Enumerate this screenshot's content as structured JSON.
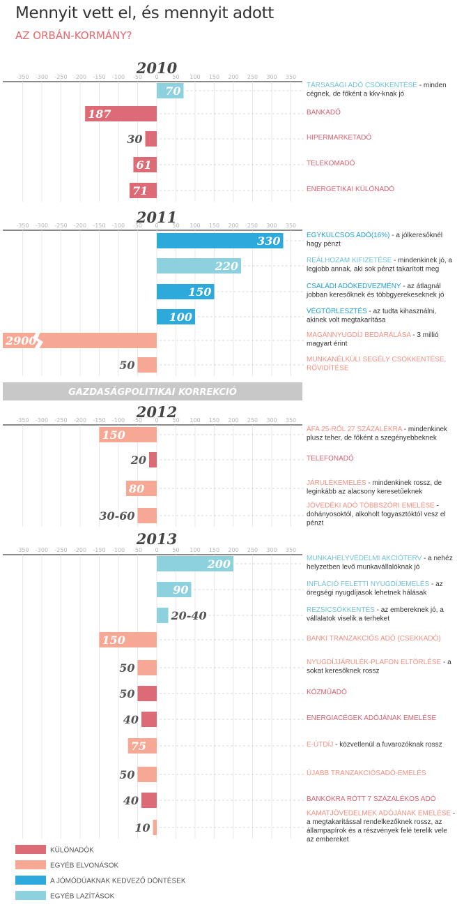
{
  "header": {
    "title": "Mennyit vett el, és mennyit adott",
    "subtitle": "AZ ORBÁN-KORMÁNY?"
  },
  "colors": {
    "kulonado": "#dc6b76",
    "egyeb_elvonas": "#f7a895",
    "jomodu": "#2ea9dc",
    "egyeb_lazitas": "#8dd0de",
    "kulonado_text": "#d96070",
    "egyeb_elvonas_text": "#f28f80",
    "jomodu_text": "#1f9ed6",
    "egyeb_lazitas_text": "#6ec3d6",
    "value_text": "#555555",
    "band": "#c8c8c8"
  },
  "chart_data": {
    "type": "bar",
    "orientation": "horizontal",
    "xlim": [
      -350,
      350
    ],
    "x_ticks": [
      -350,
      -300,
      -250,
      -200,
      -150,
      -100,
      -50,
      0,
      50,
      100,
      150,
      200,
      250,
      300,
      350
    ],
    "x_tick_labels": [
      "-350",
      "-300",
      "-250",
      "-200",
      "-150",
      "-100",
      "-50",
      "0",
      "50",
      "100",
      "150",
      "200",
      "250",
      "300",
      "350"
    ],
    "grid": true,
    "sections": [
      {
        "year": "2010",
        "items": [
          {
            "category": "egyeb_lazitas",
            "value": 70,
            "value_label": "70",
            "label": "TÁRSASÁGI ADÓ CSÖKKENTÉSE",
            "desc": " - minden cégnek, de főként a kkv-knak jó"
          },
          {
            "category": "kulonado",
            "value": -187,
            "value_label": "187",
            "label": "BANKADÓ",
            "desc": ""
          },
          {
            "category": "kulonado",
            "value": -30,
            "value_label": "30",
            "label": "HIPERMARKETADÓ",
            "desc": ""
          },
          {
            "category": "kulonado",
            "value": -61,
            "value_label": "61",
            "label": "TELEKOMADÓ",
            "desc": ""
          },
          {
            "category": "kulonado",
            "value": -71,
            "value_label": "71",
            "label": "ENERGETIKAI KÜLÖNADÓ",
            "desc": ""
          }
        ]
      },
      {
        "year": "2011",
        "items": [
          {
            "category": "jomodu",
            "value": 330,
            "value_label": "330",
            "label": "EGYKULCSOS ADÓ(16%)",
            "desc": " - a jólkeresőknél hagy pénzt"
          },
          {
            "category": "egyeb_lazitas",
            "value": 220,
            "value_label": "220",
            "label": "REÁLHOZAM KIFIZETÉSE",
            "desc": " - mindenkinek jó, a legjobb annak, aki sok pénzt takarított meg"
          },
          {
            "category": "jomodu",
            "value": 150,
            "value_label": "150",
            "label": "CSALÁDI ADÓKEDVEZMÉNY",
            "desc": " - az átlagnál jobban keresőknek és többgyerekeseknek jó"
          },
          {
            "category": "jomodu",
            "value": 100,
            "value_label": "100",
            "label": "VÉGTÖRLESZTÉS",
            "desc": " - az tudta kihasználni, akinek volt megtakarítása"
          },
          {
            "category": "egyeb_elvonas",
            "value": -2900,
            "value_label": "2900",
            "label": "MAGÁNNYUGDÍJ BEDARÁLÁSA",
            "desc": " - 3 millió magyart érint",
            "broken": true
          },
          {
            "category": "egyeb_elvonas",
            "value": -50,
            "value_label": "50",
            "label": "MUNKANÉLKÜLI SEGÉLY CSÖKKENTÉSE, RÖVIDÍTÉSE",
            "desc": ""
          }
        ]
      },
      {
        "band": "GAZDASÁGPOLITIKAI KORREKCIÓ"
      },
      {
        "year": "2012",
        "items": [
          {
            "category": "egyeb_elvonas",
            "value": -150,
            "value_label": "150",
            "label": "ÁFA 25-RŐL 27 SZÁZALÉKRA",
            "desc": " - mindenkinek plusz teher, de főként a szegényebbeknek"
          },
          {
            "category": "kulonado",
            "value": -20,
            "value_label": "20",
            "label": "TELEFONADÓ",
            "desc": ""
          },
          {
            "category": "egyeb_elvonas",
            "value": -80,
            "value_label": "80",
            "label": "JÁRULÉKEMELÉS",
            "desc": " - mindenkinek rossz, de leginkább az alacsony keresetűeknek"
          },
          {
            "category": "egyeb_elvonas",
            "value": -50,
            "value_label": "30-60",
            "label": "JÖVEDÉKI ADÓ TÖBBSZÖRI EMELÉSE",
            "desc": " - dohányosoktól, alkoholt fogyasztóktól vesz el pénzt"
          }
        ]
      },
      {
        "year": "2013",
        "items": [
          {
            "category": "egyeb_lazitas",
            "value": 200,
            "value_label": "200",
            "label": "MUNKAHELYVÉDELMI AKCIÓTERV",
            "desc": " - a nehéz helyzetben levő munkavállalóknak jó"
          },
          {
            "category": "egyeb_lazitas",
            "value": 90,
            "value_label": "90",
            "label": "INFLÁCIÓ FELETTI NYUGDÍJEMELÉS",
            "desc": " - az öregségi nyugdíjasok lehetnek hálásak"
          },
          {
            "category": "egyeb_lazitas",
            "value": 30,
            "value_label": "20-40",
            "label": "REZSICSÖKKENTÉS",
            "desc": " - az embereknek jó, a vállalatok viselik a terheket"
          },
          {
            "category": "egyeb_elvonas",
            "value": -150,
            "value_label": "150",
            "label": "BANKI TRANZAKCIÓS ADÓ (CSEKKADÓ)",
            "desc": ""
          },
          {
            "category": "egyeb_elvonas",
            "value": -50,
            "value_label": "50",
            "label": "NYUGDÍJJÁRULÉK-PLAFON ELTÖRLÉSE",
            "desc": " - a sokat keresőknek rossz"
          },
          {
            "category": "kulonado",
            "value": -50,
            "value_label": "50",
            "label": "KÖZMŰADÓ",
            "desc": ""
          },
          {
            "category": "kulonado",
            "value": -40,
            "value_label": "40",
            "label": "ENERGIACÉGEK ADÓJÁNAK EMELÉSE",
            "desc": ""
          },
          {
            "category": "egyeb_elvonas",
            "value": -75,
            "value_label": "75",
            "label": "E-ÚTDÍJ",
            "desc": " - közvetlenül a fuvarozóknak rossz"
          },
          {
            "category": "egyeb_elvonas",
            "value": -50,
            "value_label": "50",
            "label": "ÚJABB TRANZAKCIÓSADÓ-EMELÉS",
            "desc": ""
          },
          {
            "category": "kulonado",
            "value": -40,
            "value_label": "40",
            "label": "BANKOKRA RÓTT 7 SZÁZALÉKOS ADÓ",
            "desc": ""
          },
          {
            "category": "egyeb_elvonas",
            "value": -10,
            "value_label": "10",
            "label": "KAMATJÖVEDELMEK ADÓJÁNAK EMELÉSE",
            "desc": " - a megtakarítással rendelkezőknek rossz, az állampapírok és a részvények felé terelik vele az embereket"
          }
        ]
      }
    ],
    "legend": {
      "placement": "bottom-left",
      "items": [
        {
          "category": "kulonado",
          "label": "KÜLÖNADÓK"
        },
        {
          "category": "egyeb_elvonas",
          "label": "EGYÉB ELVONÁSOK"
        },
        {
          "category": "jomodu",
          "label": "A JÓMÓDÚAKNAK KEDVEZŐ DÖNTÉSEK"
        },
        {
          "category": "egyeb_lazitas",
          "label": "EGYÉB LAZÍTÁSOK"
        }
      ]
    }
  }
}
